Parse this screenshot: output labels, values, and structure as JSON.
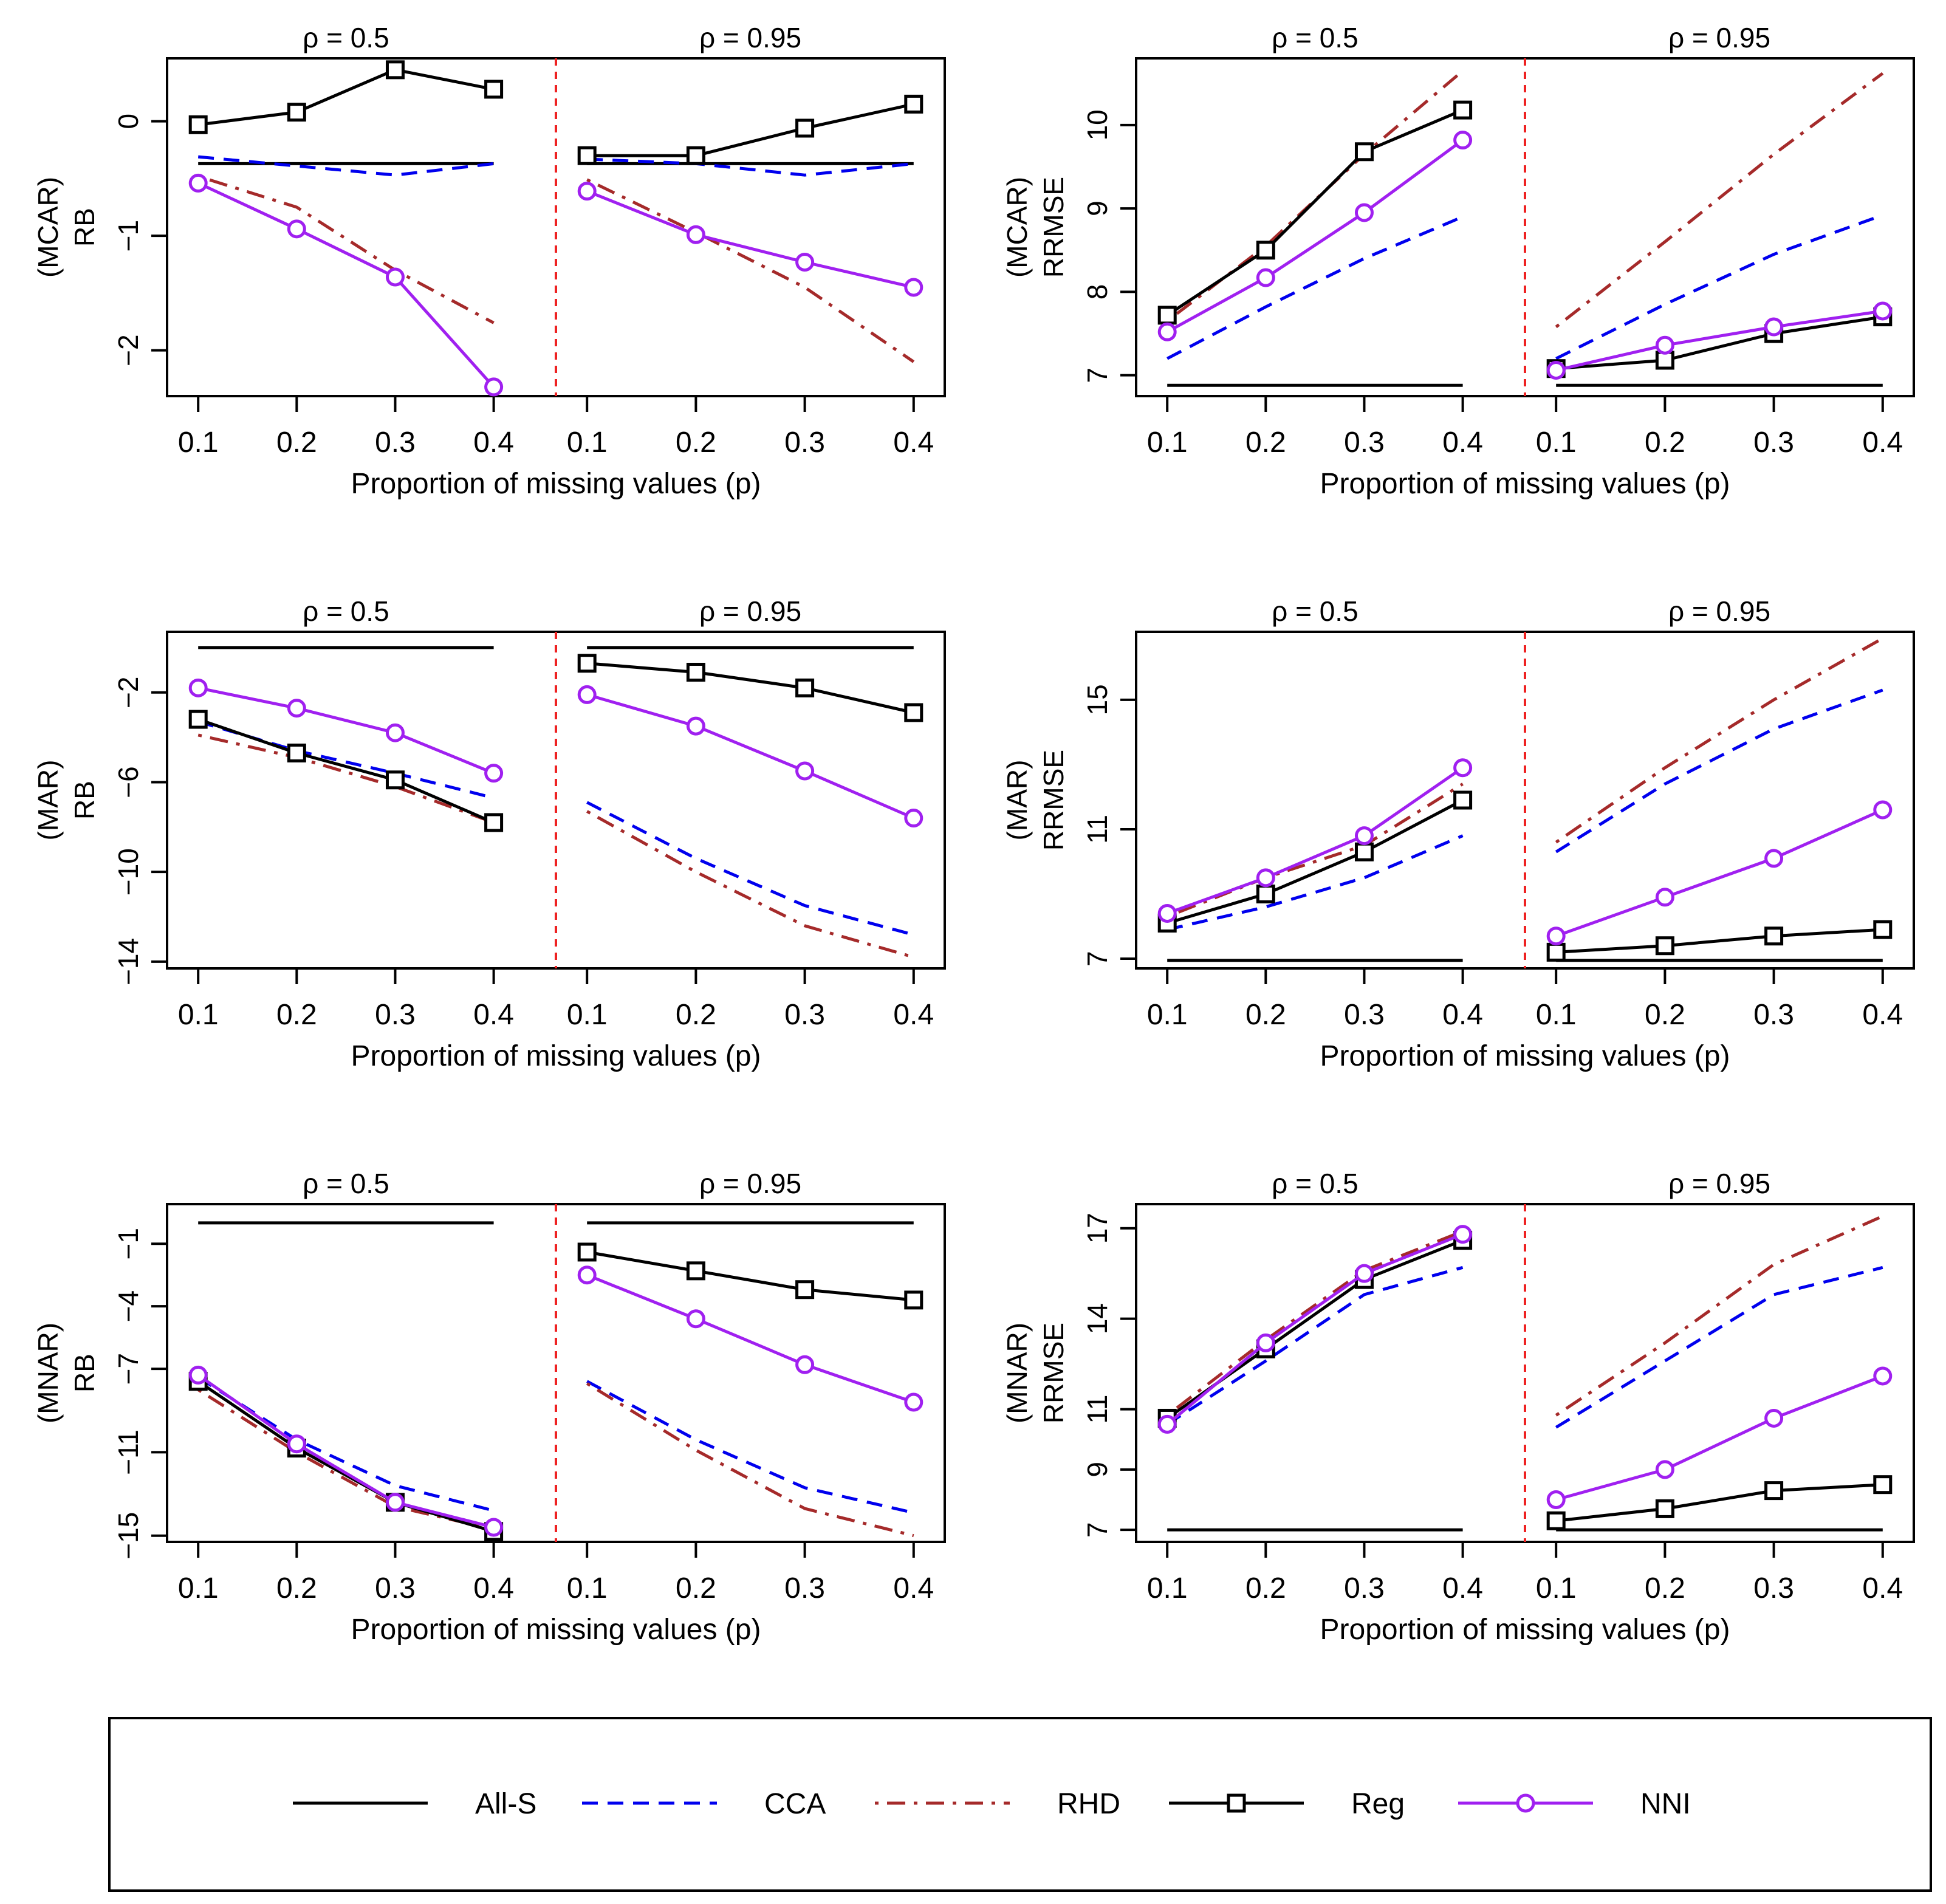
{
  "legend": {
    "entries": [
      {
        "name": "All-S",
        "color": "#000000",
        "dash": "solid",
        "marker": "none"
      },
      {
        "name": "CCA",
        "color": "#0000ee",
        "dash": "dashed",
        "marker": "none"
      },
      {
        "name": "RHD",
        "color": "#a52a2a",
        "dash": "dotdash",
        "marker": "none"
      },
      {
        "name": "Reg",
        "color": "#000000",
        "dash": "solid",
        "marker": "square"
      },
      {
        "name": "NNI",
        "color": "#a020f0",
        "dash": "solid",
        "marker": "circle"
      }
    ]
  },
  "divider_color": "#ee2222",
  "chart_data": [
    {
      "type": "line",
      "metric": "RB",
      "mechanism": "MCAR",
      "ylabel_top": "(MCAR)",
      "ylabel": "RB",
      "xlabel": "Proportion of missing values (p)",
      "ylim": [
        -2.4,
        0.55
      ],
      "yticks": [
        0,
        -1,
        -2
      ],
      "panels": [
        {
          "title": "ρ = 0.5",
          "x": [
            0.1,
            0.2,
            0.3,
            0.4
          ],
          "series": [
            {
              "name": "All-S",
              "values": [
                -0.37,
                -0.37,
                -0.37,
                -0.37
              ]
            },
            {
              "name": "CCA",
              "values": [
                -0.31,
                -0.39,
                -0.47,
                -0.37
              ]
            },
            {
              "name": "RHD",
              "values": [
                -0.48,
                -0.75,
                -1.3,
                -1.76
              ]
            },
            {
              "name": "Reg",
              "values": [
                -0.03,
                0.08,
                0.45,
                0.28
              ]
            },
            {
              "name": "NNI",
              "values": [
                -0.54,
                -0.94,
                -1.36,
                -2.32
              ]
            }
          ]
        },
        {
          "title": "ρ = 0.95",
          "x": [
            0.1,
            0.2,
            0.3,
            0.4
          ],
          "series": [
            {
              "name": "All-S",
              "values": [
                -0.37,
                -0.37,
                -0.37,
                -0.37
              ]
            },
            {
              "name": "CCA",
              "values": [
                -0.33,
                -0.37,
                -0.47,
                -0.37
              ]
            },
            {
              "name": "RHD",
              "values": [
                -0.51,
                -0.97,
                -1.45,
                -2.1
              ]
            },
            {
              "name": "Reg",
              "values": [
                -0.3,
                -0.3,
                -0.06,
                0.15
              ]
            },
            {
              "name": "NNI",
              "values": [
                -0.61,
                -0.99,
                -1.23,
                -1.45
              ]
            }
          ]
        }
      ]
    },
    {
      "type": "line",
      "metric": "RRMSE",
      "mechanism": "MCAR",
      "ylabel_top": "(MCAR)",
      "ylabel": "RRMSE",
      "xlabel": "Proportion of missing values (p)",
      "ylim": [
        6.75,
        10.8
      ],
      "yticks": [
        7,
        8,
        9,
        10
      ],
      "panels": [
        {
          "title": "ρ = 0.5",
          "x": [
            0.1,
            0.2,
            0.3,
            0.4
          ],
          "series": [
            {
              "name": "All-S",
              "values": [
                6.88,
                6.88,
                6.88,
                6.88
              ]
            },
            {
              "name": "CCA",
              "values": [
                7.2,
                7.82,
                8.4,
                8.9
              ]
            },
            {
              "name": "RHD",
              "values": [
                7.65,
                8.55,
                9.65,
                10.65
              ]
            },
            {
              "name": "Reg",
              "values": [
                7.72,
                8.5,
                9.68,
                10.18
              ]
            },
            {
              "name": "NNI",
              "values": [
                7.52,
                8.17,
                8.95,
                9.82
              ]
            }
          ]
        },
        {
          "title": "ρ = 0.95",
          "x": [
            0.1,
            0.2,
            0.3,
            0.4
          ],
          "series": [
            {
              "name": "All-S",
              "values": [
                6.88,
                6.88,
                6.88,
                6.88
              ]
            },
            {
              "name": "CCA",
              "values": [
                7.2,
                7.85,
                8.45,
                8.92
              ]
            },
            {
              "name": "RHD",
              "values": [
                7.58,
                8.6,
                9.65,
                10.62
              ]
            },
            {
              "name": "Reg",
              "values": [
                7.08,
                7.18,
                7.5,
                7.7
              ]
            },
            {
              "name": "NNI",
              "values": [
                7.06,
                7.36,
                7.58,
                7.77
              ]
            }
          ]
        }
      ]
    },
    {
      "type": "line",
      "metric": "RB",
      "mechanism": "MAR",
      "ylabel_top": "(MAR)",
      "ylabel": "RB",
      "xlabel": "Proportion of missing values (p)",
      "ylim": [
        -14.3,
        0.7
      ],
      "yticks": [
        -2,
        -6,
        -10,
        -14
      ],
      "panels": [
        {
          "title": "ρ = 0.5",
          "x": [
            0.1,
            0.2,
            0.3,
            0.4
          ],
          "series": [
            {
              "name": "All-S",
              "values": [
                0.0,
                0.0,
                0.0,
                0.0
              ]
            },
            {
              "name": "CCA",
              "values": [
                -3.3,
                -4.6,
                -5.6,
                -6.7
              ]
            },
            {
              "name": "RHD",
              "values": [
                -3.9,
                -4.9,
                -6.2,
                -7.8
              ]
            },
            {
              "name": "Reg",
              "values": [
                -3.2,
                -4.7,
                -5.9,
                -7.8
              ]
            },
            {
              "name": "NNI",
              "values": [
                -1.8,
                -2.7,
                -3.8,
                -5.6
              ]
            }
          ]
        },
        {
          "title": "ρ = 0.95",
          "x": [
            0.1,
            0.2,
            0.3,
            0.4
          ],
          "series": [
            {
              "name": "All-S",
              "values": [
                0.0,
                0.0,
                0.0,
                0.0
              ]
            },
            {
              "name": "CCA",
              "values": [
                -6.9,
                -9.4,
                -11.5,
                -12.8
              ]
            },
            {
              "name": "RHD",
              "values": [
                -7.3,
                -10.0,
                -12.4,
                -13.8
              ]
            },
            {
              "name": "Reg",
              "values": [
                -0.7,
                -1.1,
                -1.8,
                -2.9
              ]
            },
            {
              "name": "NNI",
              "values": [
                -2.1,
                -3.5,
                -5.5,
                -7.6
              ]
            }
          ]
        }
      ]
    },
    {
      "type": "line",
      "metric": "RRMSE",
      "mechanism": "MAR",
      "ylabel_top": "(MAR)",
      "ylabel": "RRMSE",
      "xlabel": "Proportion of missing values (p)",
      "ylim": [
        6.7,
        17.1
      ],
      "yticks": [
        7,
        11,
        15
      ],
      "panels": [
        {
          "title": "ρ = 0.5",
          "x": [
            0.1,
            0.2,
            0.3,
            0.4
          ],
          "series": [
            {
              "name": "All-S",
              "values": [
                6.95,
                6.95,
                6.95,
                6.95
              ]
            },
            {
              "name": "CCA",
              "values": [
                7.9,
                8.6,
                9.5,
                10.8
              ]
            },
            {
              "name": "RHD",
              "values": [
                8.3,
                9.5,
                10.5,
                12.4
              ]
            },
            {
              "name": "Reg",
              "values": [
                8.1,
                9.0,
                10.3,
                11.9
              ]
            },
            {
              "name": "NNI",
              "values": [
                8.4,
                9.5,
                10.8,
                12.9
              ]
            }
          ]
        },
        {
          "title": "ρ = 0.95",
          "x": [
            0.1,
            0.2,
            0.3,
            0.4
          ],
          "series": [
            {
              "name": "All-S",
              "values": [
                6.95,
                6.95,
                6.95,
                6.95
              ]
            },
            {
              "name": "CCA",
              "values": [
                10.3,
                12.4,
                14.1,
                15.3
              ]
            },
            {
              "name": "RHD",
              "values": [
                10.6,
                12.9,
                15.0,
                16.9
              ]
            },
            {
              "name": "Reg",
              "values": [
                7.2,
                7.4,
                7.7,
                7.9
              ]
            },
            {
              "name": "NNI",
              "values": [
                7.7,
                8.9,
                10.1,
                11.6
              ]
            }
          ]
        }
      ]
    },
    {
      "type": "line",
      "metric": "RB",
      "mechanism": "MNAR",
      "ylabel_top": "(MNAR)",
      "ylabel": "RB",
      "xlabel": "Proportion of missing values (p)",
      "ylim": [
        -15.3,
        0.9
      ],
      "yticks": [
        -1,
        -4,
        -7,
        -11,
        -15
      ],
      "panels": [
        {
          "title": "ρ = 0.5",
          "x": [
            0.1,
            0.2,
            0.3,
            0.4
          ],
          "series": [
            {
              "name": "All-S",
              "values": [
                0.0,
                0.0,
                0.0,
                0.0
              ]
            },
            {
              "name": "CCA",
              "values": [
                -7.4,
                -10.4,
                -12.6,
                -13.8
              ]
            },
            {
              "name": "RHD",
              "values": [
                -8.0,
                -11.0,
                -13.6,
                -14.7
              ]
            },
            {
              "name": "Reg",
              "values": [
                -7.6,
                -10.8,
                -13.4,
                -14.8
              ]
            },
            {
              "name": "NNI",
              "values": [
                -7.3,
                -10.6,
                -13.4,
                -14.6
              ]
            }
          ]
        },
        {
          "title": "ρ = 0.95",
          "x": [
            0.1,
            0.2,
            0.3,
            0.4
          ],
          "series": [
            {
              "name": "All-S",
              "values": [
                0.0,
                0.0,
                0.0,
                0.0
              ]
            },
            {
              "name": "CCA",
              "values": [
                -7.6,
                -10.4,
                -12.7,
                -13.9
              ]
            },
            {
              "name": "RHD",
              "values": [
                -7.7,
                -10.9,
                -13.7,
                -15.0
              ]
            },
            {
              "name": "Reg",
              "values": [
                -1.4,
                -2.3,
                -3.2,
                -3.7
              ]
            },
            {
              "name": "NNI",
              "values": [
                -2.5,
                -4.6,
                -6.8,
                -8.6
              ]
            }
          ]
        }
      ]
    },
    {
      "type": "line",
      "metric": "RRMSE",
      "mechanism": "MNAR",
      "ylabel_top": "(MNAR)",
      "ylabel": "RRMSE",
      "xlabel": "Proportion of missing values (p)",
      "ylim": [
        6.6,
        17.8
      ],
      "yticks": [
        7,
        9,
        11,
        14,
        17
      ],
      "panels": [
        {
          "title": "ρ = 0.5",
          "x": [
            0.1,
            0.2,
            0.3,
            0.4
          ],
          "series": [
            {
              "name": "All-S",
              "values": [
                7.0,
                7.0,
                7.0,
                7.0
              ]
            },
            {
              "name": "CCA",
              "values": [
                10.5,
                12.6,
                14.8,
                15.7
              ]
            },
            {
              "name": "RHD",
              "values": [
                10.8,
                13.3,
                15.6,
                16.9
              ]
            },
            {
              "name": "Reg",
              "values": [
                10.7,
                13.0,
                15.3,
                16.6
              ]
            },
            {
              "name": "NNI",
              "values": [
                10.5,
                13.2,
                15.5,
                16.8
              ]
            }
          ]
        },
        {
          "title": "ρ = 0.95",
          "x": [
            0.1,
            0.2,
            0.3,
            0.4
          ],
          "series": [
            {
              "name": "All-S",
              "values": [
                7.0,
                7.0,
                7.0,
                7.0
              ]
            },
            {
              "name": "CCA",
              "values": [
                10.4,
                12.6,
                14.8,
                15.7
              ]
            },
            {
              "name": "RHD",
              "values": [
                10.8,
                13.2,
                15.8,
                17.4
              ]
            },
            {
              "name": "Reg",
              "values": [
                7.3,
                7.7,
                8.3,
                8.5
              ]
            },
            {
              "name": "NNI",
              "values": [
                8.0,
                9.0,
                10.7,
                12.1
              ]
            }
          ]
        }
      ]
    }
  ]
}
